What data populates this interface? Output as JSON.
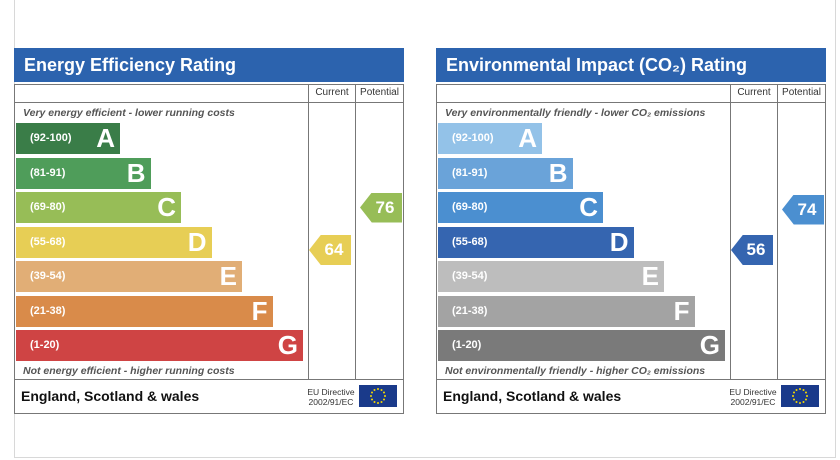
{
  "chart_data": [
    {
      "type": "table",
      "title": "Energy Efficiency Rating",
      "columns": [
        "Current",
        "Potential"
      ],
      "top_note": "Very energy efficient - lower running costs",
      "bottom_note": "Not energy efficient - higher running costs",
      "bands": [
        {
          "range": "(92-100)",
          "letter": "A",
          "color": "#3a7d48"
        },
        {
          "range": "(81-91)",
          "letter": "B",
          "color": "#4f9d5a"
        },
        {
          "range": "(69-80)",
          "letter": "C",
          "color": "#97bd57"
        },
        {
          "range": "(55-68)",
          "letter": "D",
          "color": "#e7ce55"
        },
        {
          "range": "(39-54)",
          "letter": "E",
          "color": "#e1ae76"
        },
        {
          "range": "(21-38)",
          "letter": "F",
          "color": "#d98b4a"
        },
        {
          "range": "(1-20)",
          "letter": "G",
          "color": "#cf4444"
        }
      ],
      "current": {
        "value": "64",
        "band": "D",
        "color": "#e7ce55"
      },
      "potential": {
        "value": "76",
        "band": "C",
        "color": "#97bd57"
      },
      "footer_region": "England, Scotland & wales",
      "footer_directive": [
        "EU Directive",
        "2002/91/EC"
      ]
    },
    {
      "type": "table",
      "title": "Environmental Impact (CO₂) Rating",
      "columns": [
        "Current",
        "Potential"
      ],
      "top_note": "Very environmentally friendly - lower CO₂ emissions",
      "bottom_note": "Not environmentally friendly - higher CO₂ emissions",
      "bands": [
        {
          "range": "(92-100)",
          "letter": "A",
          "color": "#93c2e8"
        },
        {
          "range": "(81-91)",
          "letter": "B",
          "color": "#6aa3d9"
        },
        {
          "range": "(69-80)",
          "letter": "C",
          "color": "#4b8fd0"
        },
        {
          "range": "(55-68)",
          "letter": "D",
          "color": "#3565b0"
        },
        {
          "range": "(39-54)",
          "letter": "E",
          "color": "#bdbdbd"
        },
        {
          "range": "(21-38)",
          "letter": "F",
          "color": "#a3a3a3"
        },
        {
          "range": "(1-20)",
          "letter": "G",
          "color": "#7a7a7a"
        }
      ],
      "current": {
        "value": "56",
        "band": "D",
        "color": "#3565b0"
      },
      "potential": {
        "value": "74",
        "band": "C",
        "color": "#4b8fd0"
      },
      "footer_region": "England, Scotland & wales",
      "footer_directive": [
        "EU Directive",
        "2002/91/EC"
      ]
    }
  ]
}
